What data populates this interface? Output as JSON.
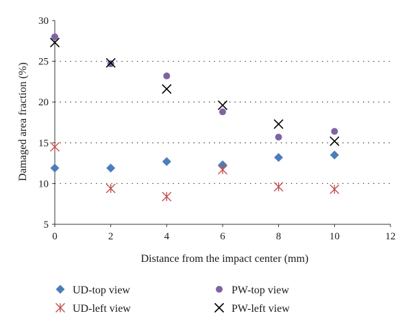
{
  "chart_data": {
    "type": "scatter",
    "title": "",
    "xlabel": "Distance from the impact center (mm)",
    "ylabel": "Damaged area fraction (%)",
    "xlim": [
      0,
      12
    ],
    "ylim": [
      5,
      30
    ],
    "xticks": [
      0,
      2,
      4,
      6,
      8,
      10,
      12
    ],
    "yticks": [
      5,
      10,
      15,
      20,
      25,
      30
    ],
    "grid": "horizontal dotted at 10, 15, 20, 25",
    "legend_position": "bottom",
    "series": [
      {
        "name": "UD-top view",
        "marker": "diamond",
        "color": "#4a7ebb",
        "x": [
          0,
          2,
          4,
          6,
          8,
          10
        ],
        "y": [
          11.9,
          11.9,
          12.7,
          12.3,
          13.2,
          13.5
        ]
      },
      {
        "name": "UD-left view",
        "marker": "asterisk",
        "color": "#c0504d",
        "x": [
          0,
          2,
          4,
          6,
          8,
          10
        ],
        "y": [
          14.5,
          9.4,
          8.4,
          11.7,
          9.6,
          9.3
        ]
      },
      {
        "name": "PW-top view",
        "marker": "circle",
        "color": "#8064a2",
        "x": [
          0,
          2,
          4,
          6,
          8,
          10
        ],
        "y": [
          28.0,
          24.7,
          23.2,
          18.8,
          15.7,
          16.4
        ]
      },
      {
        "name": "PW-left view",
        "marker": "x",
        "color": "#000000",
        "x": [
          0,
          2,
          4,
          6,
          8,
          10
        ],
        "y": [
          27.3,
          24.8,
          21.6,
          19.6,
          17.3,
          15.2
        ]
      }
    ]
  }
}
